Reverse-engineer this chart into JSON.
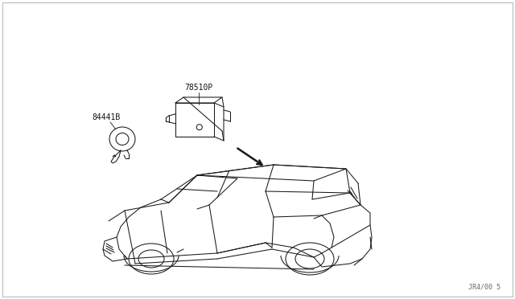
{
  "bg_color": "#ffffff",
  "border_color": "#aaaaaa",
  "label1": "78510P",
  "label2": "84441B",
  "footnote": "JR4/00 5",
  "line_color": "#1a1a1a",
  "text_color": "#111111",
  "font_size_labels": 7.0
}
